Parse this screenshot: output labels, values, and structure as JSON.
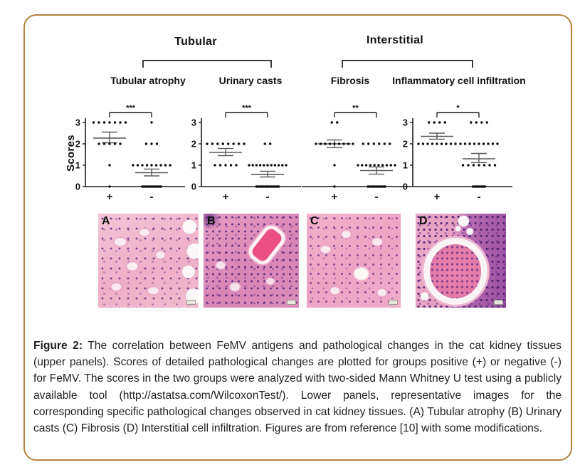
{
  "page": {
    "background": "#ffffff",
    "border_color": "#b5813f"
  },
  "figure": {
    "y_axis_label": "Scores",
    "group_headers": [
      {
        "label": "Tubular"
      },
      {
        "label": "Interstitial"
      }
    ]
  },
  "chart_data": [
    {
      "type": "scatter",
      "title": "Tubular atrophy",
      "group_header": "Tubular",
      "significance": "***",
      "ylabel": "Scores",
      "ylim": [
        0,
        3
      ],
      "yticks": [
        0,
        1,
        2,
        3
      ],
      "show_y_axis": true,
      "categories": [
        "+",
        "-"
      ],
      "series": [
        {
          "name": "+",
          "dot_counts": {
            "3": 7,
            "2": 5,
            "1": 1,
            "0": 1
          },
          "mean": 2.27,
          "err_low": 2.05,
          "err_high": 2.55
        },
        {
          "name": "-",
          "dot_counts": {
            "3": 1,
            "2": 3,
            "1": 9,
            "0": 12
          },
          "mean": 0.65,
          "err_low": 0.5,
          "err_high": 0.82
        }
      ]
    },
    {
      "type": "scatter",
      "title": "Urinary casts",
      "group_header": "Tubular",
      "significance": "***",
      "ylabel": "Scores",
      "ylim": [
        0,
        3
      ],
      "yticks": [
        0,
        1,
        2,
        3
      ],
      "show_y_axis": true,
      "categories": [
        "+",
        "-"
      ],
      "series": [
        {
          "name": "+",
          "dot_counts": {
            "2": 8,
            "1": 5
          },
          "mean": 1.6,
          "err_low": 1.45,
          "err_high": 1.78
        },
        {
          "name": "-",
          "dot_counts": {
            "2": 2,
            "1": 11,
            "0": 14
          },
          "mean": 0.57,
          "err_low": 0.45,
          "err_high": 0.72
        }
      ]
    },
    {
      "type": "scatter",
      "title": "Fibrosis",
      "group_header": "Interstitial",
      "significance": "**",
      "ylabel": "Scores",
      "ylim": [
        0,
        3
      ],
      "yticks": [
        0,
        1,
        2,
        3
      ],
      "show_y_axis": false,
      "categories": [
        "+",
        "-"
      ],
      "series": [
        {
          "name": "+",
          "dot_counts": {
            "3": 2,
            "2": 9,
            "1": 1,
            "0": 1
          },
          "mean": 2.0,
          "err_low": 1.82,
          "err_high": 2.18
        },
        {
          "name": "-",
          "dot_counts": {
            "2": 6,
            "1": 10,
            "0": 11
          },
          "mean": 0.75,
          "err_low": 0.58,
          "err_high": 0.92
        }
      ]
    },
    {
      "type": "scatter",
      "title": "Inflammatory cell infiltration",
      "group_header": "Interstitial",
      "significance": "*",
      "ylabel": "Scores",
      "ylim": [
        0,
        3
      ],
      "yticks": [
        0,
        1,
        2,
        3
      ],
      "show_y_axis": true,
      "categories": [
        "+",
        "-"
      ],
      "series": [
        {
          "name": "+",
          "dot_counts": {
            "3": 4,
            "2": 9
          },
          "mean": 2.35,
          "err_low": 2.22,
          "err_high": 2.5
        },
        {
          "name": "-",
          "dot_counts": {
            "3": 4,
            "2": 9,
            "1": 7,
            "0": 8
          },
          "mean": 1.3,
          "err_low": 1.12,
          "err_high": 1.55
        }
      ]
    }
  ],
  "photo_panels": [
    {
      "label": "A",
      "description": "Tubular atrophy"
    },
    {
      "label": "B",
      "description": "Urinary casts"
    },
    {
      "label": "C",
      "description": "Fibrosis"
    },
    {
      "label": "D",
      "description": "Interstitial cell infiltration"
    }
  ],
  "caption": {
    "label": "Figure 2:",
    "text": " The correlation between FeMV antigens and pathological changes in the cat kidney tissues (upper panels). Scores of detailed pathological changes are plotted for groups positive (+) or negative (-) for FeMV. The scores in the two groups were analyzed with two-sided Mann Whitney U test using a publicly available tool (http://astatsa.com/WilcoxonTest/). Lower panels, representative images for the corresponding specific pathological changes observed in cat kidney tissues. (A) Tubular atrophy (B) Urinary casts (C) Fibrosis (D) Interstitial cell infiltration. Figures are from reference [10] with some modifications."
  },
  "colors": {
    "border": "#b5813f",
    "dot": "#0d0d0d",
    "error_bar": "#5a5a5a",
    "axis": "#1a1a1a"
  }
}
